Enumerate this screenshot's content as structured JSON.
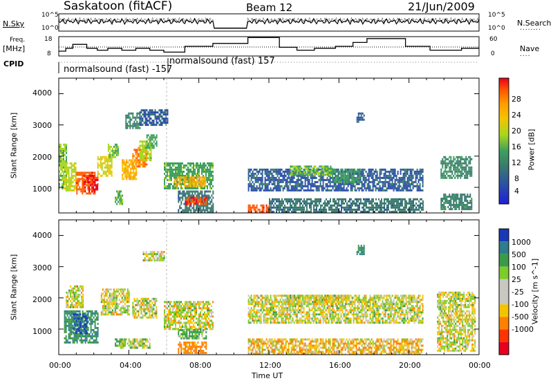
{
  "header": {
    "station": "Saskatoon (fitACF)",
    "beam": "Beam 12",
    "date": "21/Jun/2009"
  },
  "panel_labels": {
    "nsky": "N.Sky",
    "nsearch": "N.Search",
    "freq": "Freq.",
    "freq_unit": "[MHz]",
    "nave": "Nave",
    "cpid": "CPID",
    "cpid_mode1": "normalsound (fast) -157",
    "cpid_mode2": "normalsound (fast) 157",
    "nsky_ticks": [
      "10^5",
      "10^0"
    ],
    "nsearch_ticks": [
      "10^5",
      "10^0"
    ],
    "freq_ticks": [
      "18",
      "8"
    ],
    "nave_ticks": [
      "60",
      "0"
    ]
  },
  "axes": {
    "ylabel": "Slant Range [km]",
    "xlabel": "Time UT",
    "yticks": [
      "4000",
      "3000",
      "2000",
      "1000"
    ],
    "xticks": [
      "00:00",
      "04:00",
      "08:00",
      "12:00",
      "16:00",
      "20:00",
      "00:00"
    ]
  },
  "power_scale": {
    "label": "Power [dB]",
    "ticks": [
      "28",
      "24",
      "20",
      "16",
      "12",
      "8",
      "4"
    ],
    "colors": [
      "#e8001c",
      "#ff5a00",
      "#ff9b00",
      "#f4c400",
      "#a8d61e",
      "#3d9f5e",
      "#3a7a6e",
      "#2a4fa8",
      "#1f1fd8"
    ]
  },
  "velocity_scale": {
    "label": "Velocity [m s^-1]",
    "ticks": [
      "1000",
      "500",
      "100",
      "25",
      "-25",
      "-100",
      "-500",
      "-1000"
    ],
    "colors": [
      "#1838b8",
      "#2d7d8c",
      "#3a9a48",
      "#7ccc2a",
      "#c8c8c0",
      "#c8c8c0",
      "#f4c400",
      "#ff8000",
      "#ff3300",
      "#e8001c"
    ]
  },
  "chart_data": [
    {
      "type": "line",
      "title": "Saskatoon (fitACF)",
      "subtitle": "Beam 12",
      "xlabel": "",
      "ylabel": "Freq. [MHz]",
      "xlim": [
        0,
        24
      ],
      "ylim": [
        8,
        18
      ],
      "x": [
        0,
        0.4,
        0.8,
        1.6,
        2.2,
        2.8,
        3.6,
        4.4,
        5.2,
        6.0,
        7.2,
        8.8,
        10.8,
        12.6,
        13.6,
        14.6,
        15.8,
        16.8,
        17.6,
        19.8,
        21.2,
        23.0,
        24
      ],
      "series": [
        {
          "name": "Freq.",
          "values": [
            10.5,
            12,
            14,
            12,
            11,
            12,
            11,
            12,
            11,
            10,
            13,
            14.5,
            17.5,
            12.5,
            11,
            12,
            13,
            15,
            17,
            13,
            11,
            12,
            12
          ]
        }
      ]
    },
    {
      "type": "heatmap",
      "title": "Power [dB]",
      "xlabel": "Time UT",
      "ylabel": "Slant Range [km]",
      "xlim": [
        0,
        24
      ],
      "ylim": [
        180,
        4500
      ],
      "colorbar_range": [
        0,
        30
      ],
      "blocks": [
        {
          "t0": 0.0,
          "t1": 0.4,
          "r0": 1000,
          "r1": 2400,
          "v": 14
        },
        {
          "t0": 0.3,
          "t1": 1.0,
          "r0": 900,
          "r1": 1800,
          "v": 16
        },
        {
          "t0": 1.0,
          "t1": 2.1,
          "r0": 800,
          "r1": 1500,
          "v": 25
        },
        {
          "t0": 1.4,
          "t1": 2.2,
          "r0": 1100,
          "r1": 1400,
          "v": 27
        },
        {
          "t0": 1.7,
          "t1": 2.2,
          "r0": 850,
          "r1": 1100,
          "v": 29
        },
        {
          "t0": 2.2,
          "t1": 3.0,
          "r0": 1400,
          "r1": 2000,
          "v": 17
        },
        {
          "t0": 2.8,
          "t1": 3.4,
          "r0": 2000,
          "r1": 2400,
          "v": 14
        },
        {
          "t0": 3.2,
          "t1": 3.6,
          "r0": 500,
          "r1": 900,
          "v": 13
        },
        {
          "t0": 3.6,
          "t1": 4.4,
          "r0": 1300,
          "r1": 1900,
          "v": 20
        },
        {
          "t0": 4.2,
          "t1": 5.0,
          "r0": 1700,
          "r1": 2300,
          "v": 23
        },
        {
          "t0": 4.6,
          "t1": 5.3,
          "r0": 1900,
          "r1": 2500,
          "v": 15
        },
        {
          "t0": 5.0,
          "t1": 5.6,
          "r0": 2300,
          "r1": 2700,
          "v": 12
        },
        {
          "t0": 3.8,
          "t1": 4.6,
          "r0": 2900,
          "r1": 3400,
          "v": 9
        },
        {
          "t0": 4.6,
          "t1": 6.2,
          "r0": 3000,
          "r1": 3500,
          "v": 6
        },
        {
          "t0": 6.0,
          "t1": 8.8,
          "r0": 1000,
          "r1": 1800,
          "v": 12
        },
        {
          "t0": 6.6,
          "t1": 8.4,
          "r0": 1050,
          "r1": 1350,
          "v": 20
        },
        {
          "t0": 6.8,
          "t1": 8.8,
          "r0": 200,
          "r1": 900,
          "v": 8
        },
        {
          "t0": 7.2,
          "t1": 8.4,
          "r0": 480,
          "r1": 700,
          "v": 26
        },
        {
          "t0": 10.8,
          "t1": 12.0,
          "r0": 200,
          "r1": 450,
          "v": 26
        },
        {
          "t0": 12.0,
          "t1": 20.8,
          "r0": 200,
          "r1": 650,
          "v": 8
        },
        {
          "t0": 10.8,
          "t1": 20.8,
          "r0": 900,
          "r1": 1600,
          "v": 6
        },
        {
          "t0": 13.2,
          "t1": 15.6,
          "r0": 1400,
          "r1": 1700,
          "v": 13
        },
        {
          "t0": 15.6,
          "t1": 17.2,
          "r0": 1200,
          "r1": 1600,
          "v": 11
        },
        {
          "t0": 17.0,
          "t1": 17.4,
          "r0": 3100,
          "r1": 3400,
          "v": 7
        },
        {
          "t0": 21.8,
          "t1": 23.6,
          "r0": 1300,
          "r1": 2000,
          "v": 10
        },
        {
          "t0": 21.8,
          "t1": 23.6,
          "r0": 300,
          "r1": 800,
          "v": 9
        }
      ]
    },
    {
      "type": "heatmap",
      "title": "Velocity [m s^-1]",
      "xlabel": "Time UT",
      "ylabel": "Slant Range [km]",
      "xlim": [
        0,
        24
      ],
      "ylim": [
        180,
        4500
      ],
      "colorbar_range": [
        -1000,
        1000
      ],
      "blocks": [
        {
          "t0": 0.3,
          "t1": 2.2,
          "r0": 600,
          "r1": 1600,
          "v": 300
        },
        {
          "t0": 0.8,
          "t1": 1.6,
          "r0": 900,
          "r1": 1500,
          "v": 700
        },
        {
          "t0": 0.4,
          "t1": 1.4,
          "r0": 1700,
          "r1": 2400,
          "v": 0
        },
        {
          "t0": 2.4,
          "t1": 4.0,
          "r0": 1500,
          "r1": 2300,
          "v": 0
        },
        {
          "t0": 3.2,
          "t1": 3.8,
          "r0": 450,
          "r1": 700,
          "v": 150
        },
        {
          "t0": 3.5,
          "t1": 5.2,
          "r0": 400,
          "r1": 700,
          "v": 50
        },
        {
          "t0": 4.2,
          "t1": 5.6,
          "r0": 1400,
          "r1": 2000,
          "v": 0
        },
        {
          "t0": 4.8,
          "t1": 6.0,
          "r0": 3200,
          "r1": 3500,
          "v": 0
        },
        {
          "t0": 6.0,
          "t1": 8.8,
          "r0": 1000,
          "r1": 1900,
          "v": 0
        },
        {
          "t0": 6.8,
          "t1": 8.4,
          "r0": 700,
          "r1": 1000,
          "v": 120
        },
        {
          "t0": 6.8,
          "t1": 8.4,
          "r0": 220,
          "r1": 600,
          "v": -200
        },
        {
          "t0": 10.8,
          "t1": 20.8,
          "r0": 220,
          "r1": 700,
          "v": -60
        },
        {
          "t0": 10.8,
          "t1": 20.8,
          "r0": 1200,
          "r1": 2100,
          "v": 0
        },
        {
          "t0": 12.8,
          "t1": 16.4,
          "r0": 1800,
          "r1": 2100,
          "v": 0
        },
        {
          "t0": 17.0,
          "t1": 17.4,
          "r0": 3400,
          "r1": 3700,
          "v": 300
        },
        {
          "t0": 21.6,
          "t1": 23.8,
          "r0": 300,
          "r1": 2200,
          "v": 0
        }
      ]
    }
  ]
}
